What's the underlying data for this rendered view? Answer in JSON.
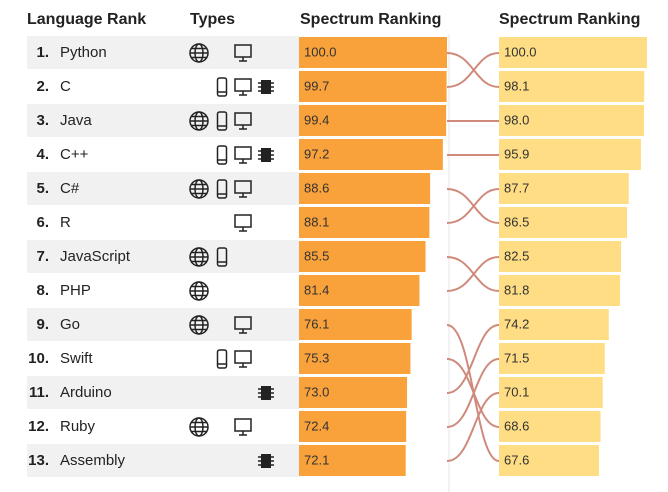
{
  "headers": {
    "language": "Language Rank",
    "types": "Types",
    "current": "Spectrum Ranking",
    "previous": "Spectrum Ranking"
  },
  "bar_colors": {
    "current": "#f9a23b",
    "previous": "#fedd84"
  },
  "link_color": "#cf8a7c",
  "rows": [
    {
      "rank": "1.",
      "name": "Python",
      "types": [
        "web",
        "desktop"
      ],
      "score": 100,
      "score_label": "100.0",
      "previous": 98.1,
      "previous_label": "98.1"
    },
    {
      "rank": "2.",
      "name": "C",
      "types": [
        "mobile",
        "desktop",
        "embedded"
      ],
      "score": 99.7,
      "score_label": "99.7",
      "previous": 100,
      "previous_label": "100.0"
    },
    {
      "rank": "3.",
      "name": "Java",
      "types": [
        "web",
        "mobile",
        "desktop"
      ],
      "score": 99.4,
      "score_label": "99.4",
      "previous": 98,
      "previous_label": "98.0"
    },
    {
      "rank": "4.",
      "name": "C++",
      "types": [
        "mobile",
        "desktop",
        "embedded"
      ],
      "score": 97.2,
      "score_label": "97.2",
      "previous": 95.9,
      "previous_label": "95.9"
    },
    {
      "rank": "5.",
      "name": "C#",
      "types": [
        "web",
        "mobile",
        "desktop"
      ],
      "score": 88.6,
      "score_label": "88.6",
      "previous": 86.5,
      "previous_label": "86.5"
    },
    {
      "rank": "6.",
      "name": "R",
      "types": [
        "desktop"
      ],
      "score": 88.1,
      "score_label": "88.1",
      "previous": 87.7,
      "previous_label": "87.7"
    },
    {
      "rank": "7.",
      "name": "JavaScript",
      "types": [
        "web",
        "mobile"
      ],
      "score": 85.5,
      "score_label": "85.5",
      "previous": 81.8,
      "previous_label": "81.8"
    },
    {
      "rank": "8.",
      "name": "PHP",
      "types": [
        "web"
      ],
      "score": 81.4,
      "score_label": "81.4",
      "previous": 82.5,
      "previous_label": "82.5"
    },
    {
      "rank": "9.",
      "name": "Go",
      "types": [
        "web",
        "desktop"
      ],
      "score": 76.1,
      "score_label": "76.1",
      "previous": 67.6,
      "previous_label": "67.6"
    },
    {
      "rank": "10.",
      "name": "Swift",
      "types": [
        "mobile",
        "desktop"
      ],
      "score": 75.3,
      "score_label": "75.3",
      "previous": 68.6,
      "previous_label": "68.6"
    },
    {
      "rank": "11.",
      "name": "Arduino",
      "types": [
        "embedded"
      ],
      "score": 73,
      "score_label": "73.0",
      "previous": 74.2,
      "previous_label": "74.2"
    },
    {
      "rank": "12.",
      "name": "Ruby",
      "types": [
        "web",
        "desktop"
      ],
      "score": 72.4,
      "score_label": "72.4",
      "previous": 71.5,
      "previous_label": "71.5"
    },
    {
      "rank": "13.",
      "name": "Assembly",
      "types": [
        "embedded"
      ],
      "score": 72.1,
      "score_label": "72.1",
      "previous": 70.1,
      "previous_label": "70.1"
    }
  ]
}
